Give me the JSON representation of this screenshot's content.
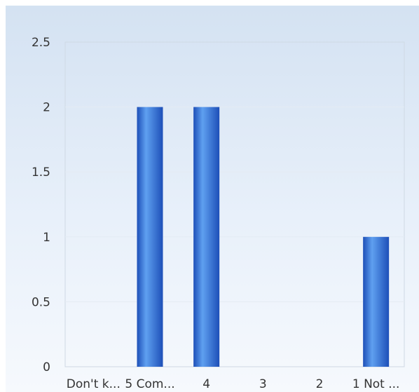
{
  "chart_data": {
    "type": "bar",
    "title": "",
    "xlabel": "",
    "ylabel": "",
    "categories": [
      "Don't k...",
      "5 Com...",
      "4",
      "3",
      "2",
      "1 Not ..."
    ],
    "values": [
      0,
      2,
      2,
      0,
      0,
      1
    ],
    "ylim": [
      0,
      2.5
    ],
    "yticks": [
      "0",
      "0.5",
      "1",
      "1.5",
      "2",
      "2.5"
    ],
    "grid": true,
    "legend": "none",
    "colors": {
      "bar_light": "#5fa0f0",
      "bar_dark": "#1d4fb8",
      "grid": "#e4ebf3",
      "plot_border": "#cfd9e4"
    }
  }
}
